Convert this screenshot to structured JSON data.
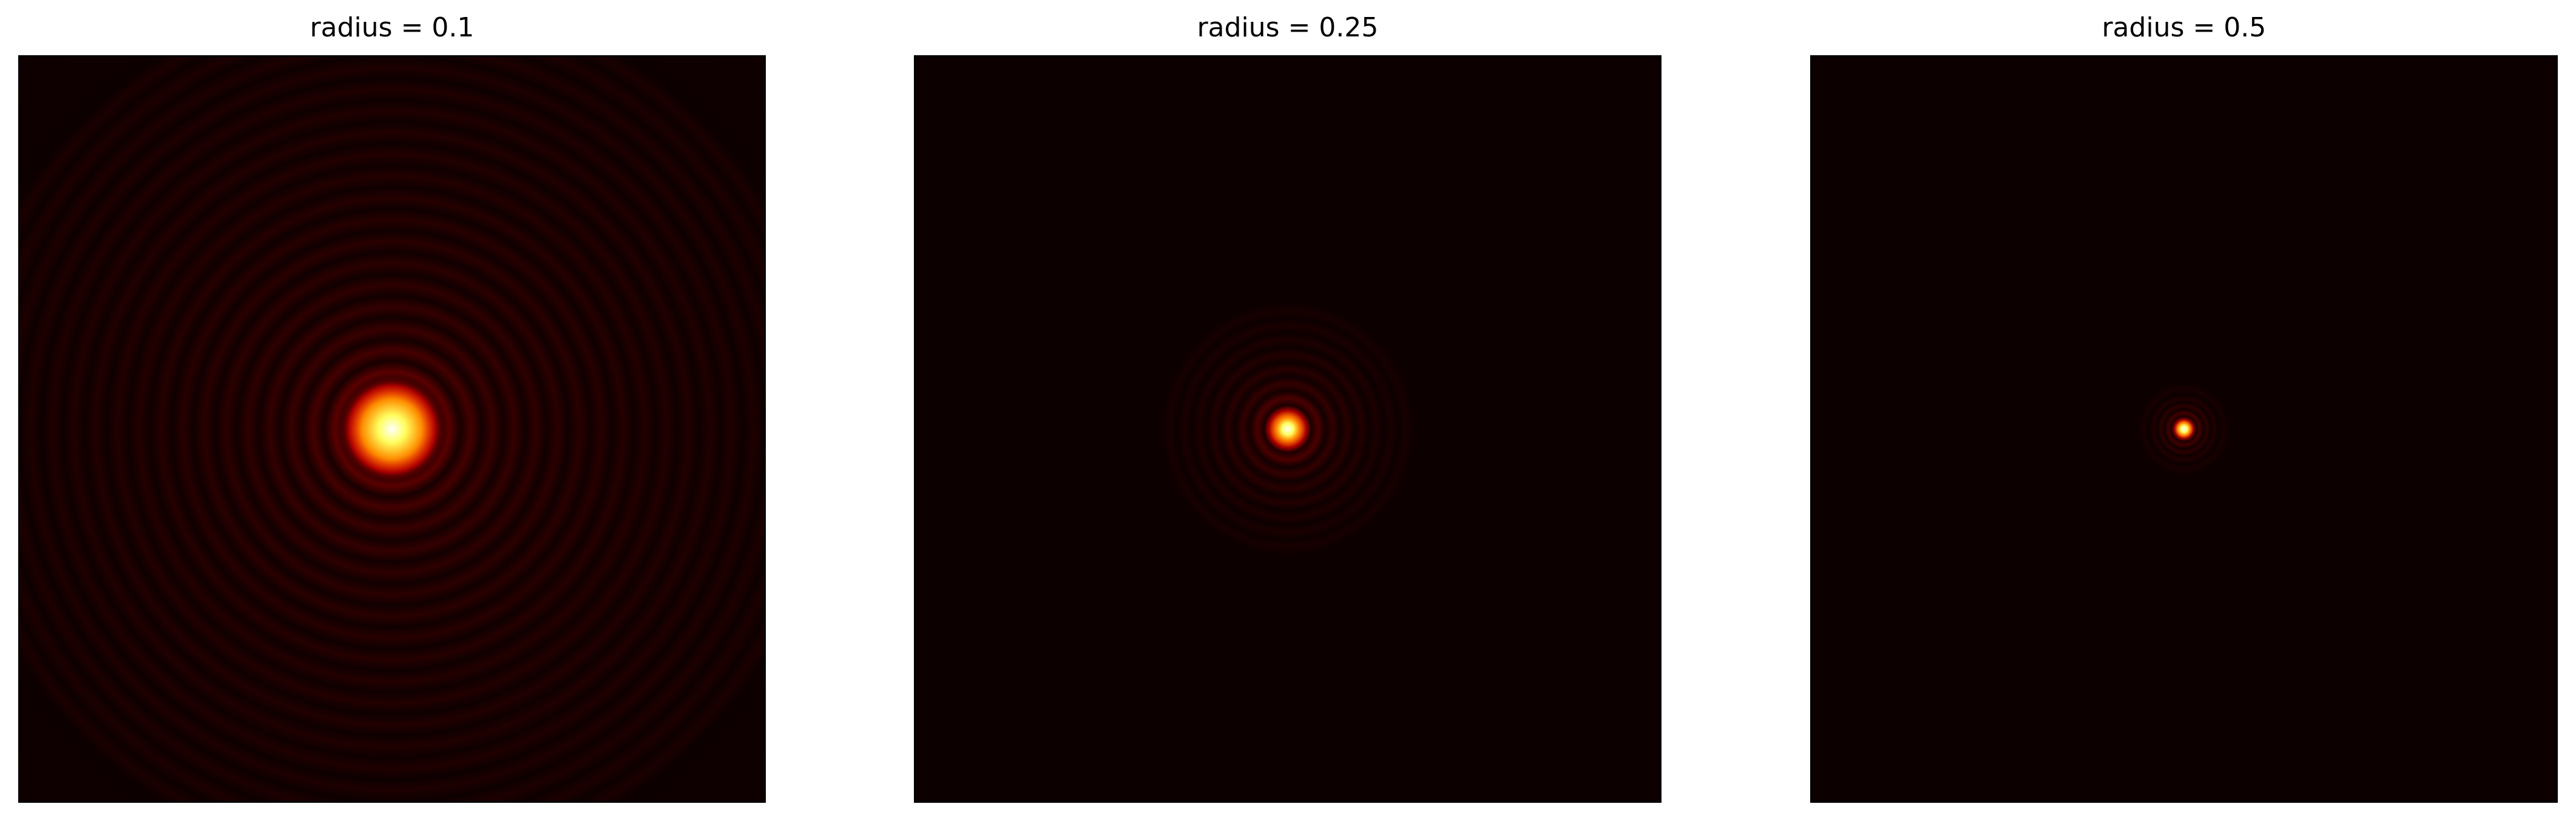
{
  "figure": {
    "panels": [
      {
        "title": "radius = 0.1"
      },
      {
        "title": "radius = 0.25"
      },
      {
        "title": "radius = 0.5"
      }
    ],
    "colormap": "hot",
    "colors": {
      "background": "#0c0000",
      "ring_dark": "#3a0000",
      "ring_mid": "#5a0000",
      "core_red": "#c80000",
      "core_orange": "#ff6a00",
      "core_yellow": "#ffff30",
      "core_white": "#ffffff"
    },
    "content": "airy-disk diffraction patterns"
  }
}
